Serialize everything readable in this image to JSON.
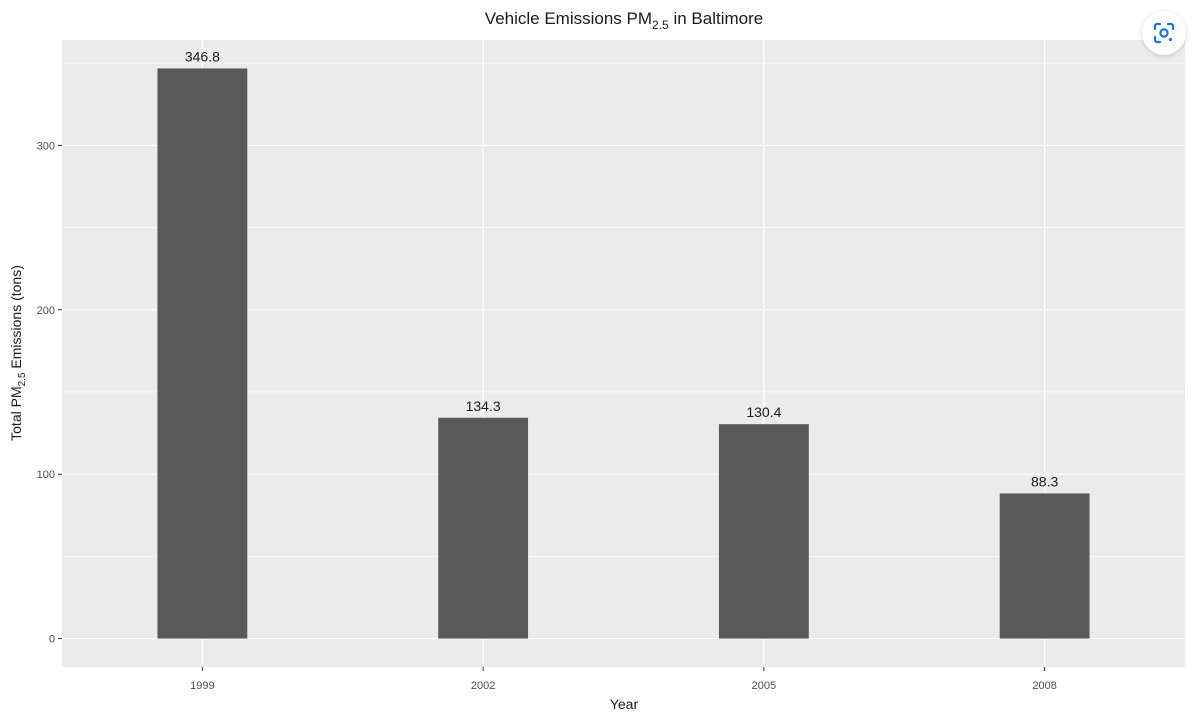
{
  "chart_data": {
    "type": "bar",
    "title": {
      "prefix": "Vehicle Emissions PM",
      "subscript": "2.5",
      "suffix": " in Baltimore"
    },
    "xlabel": "Year",
    "ylabel": {
      "prefix": "Total PM",
      "subscript": "2.5",
      "suffix": " Emissions (tons)"
    },
    "categories": [
      "1999",
      "2002",
      "2005",
      "2008"
    ],
    "values": [
      346.8,
      134.3,
      130.4,
      88.3
    ],
    "data_labels": [
      "346.8",
      "134.3",
      "130.4",
      "88.3"
    ],
    "yticks": [
      0,
      100,
      200,
      300
    ],
    "ylim": [
      -17.3,
      364.1
    ],
    "grid": true,
    "legend": "none",
    "colors": {
      "panel": "#EBEBEB",
      "grid": "#FFFFFF",
      "bar": "#595959",
      "text": "#1A1A1A",
      "tick_text": "#4D4D4D",
      "lens_icon": "#1A73E8"
    }
  },
  "toolbar": {
    "lens_icon": "google-lens-icon"
  }
}
